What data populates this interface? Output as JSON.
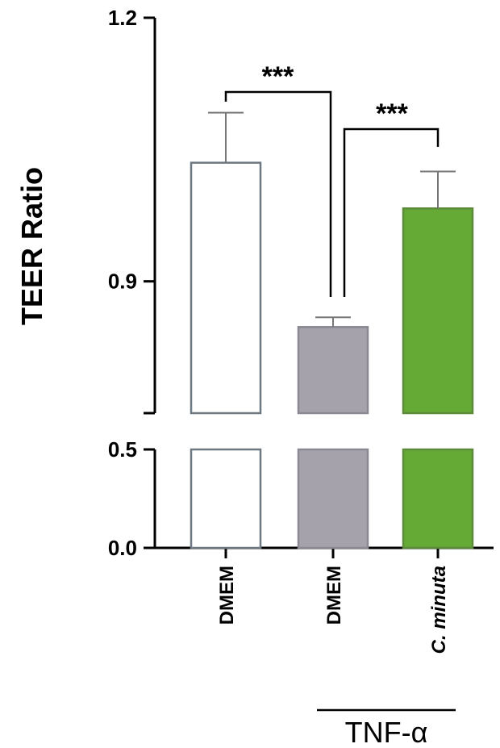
{
  "chart_data": {
    "type": "bar",
    "ylabel": "TEER Ratio",
    "y_axis_break": true,
    "upper_segment_ylim": [
      0.75,
      1.2
    ],
    "lower_segment_ylim": [
      0.0,
      0.5
    ],
    "upper_ticks": [
      "1.2",
      "0.9"
    ],
    "lower_ticks": [
      "0.5",
      "0.0"
    ],
    "categories": [
      "DMEM",
      "DMEM",
      "C. minuta"
    ],
    "category_italic": [
      false,
      false,
      true
    ],
    "values": [
      1.035,
      0.848,
      0.983
    ],
    "errors": [
      0.057,
      0.011,
      0.042
    ],
    "colors": {
      "bar_fills": [
        "#ffffff",
        "#a6a2ac",
        "#64aa35"
      ],
      "bar_strokes": [
        "#6e7880",
        "#8a8893",
        "#5a8a3a"
      ],
      "error_bar": "#777777",
      "axis": "#000000"
    },
    "group_label": "TNF-α",
    "group_members": [
      1,
      2
    ],
    "significance": [
      {
        "from": 0,
        "to": 1,
        "label": "***"
      },
      {
        "from": 1,
        "to": 2,
        "label": "***"
      }
    ]
  }
}
